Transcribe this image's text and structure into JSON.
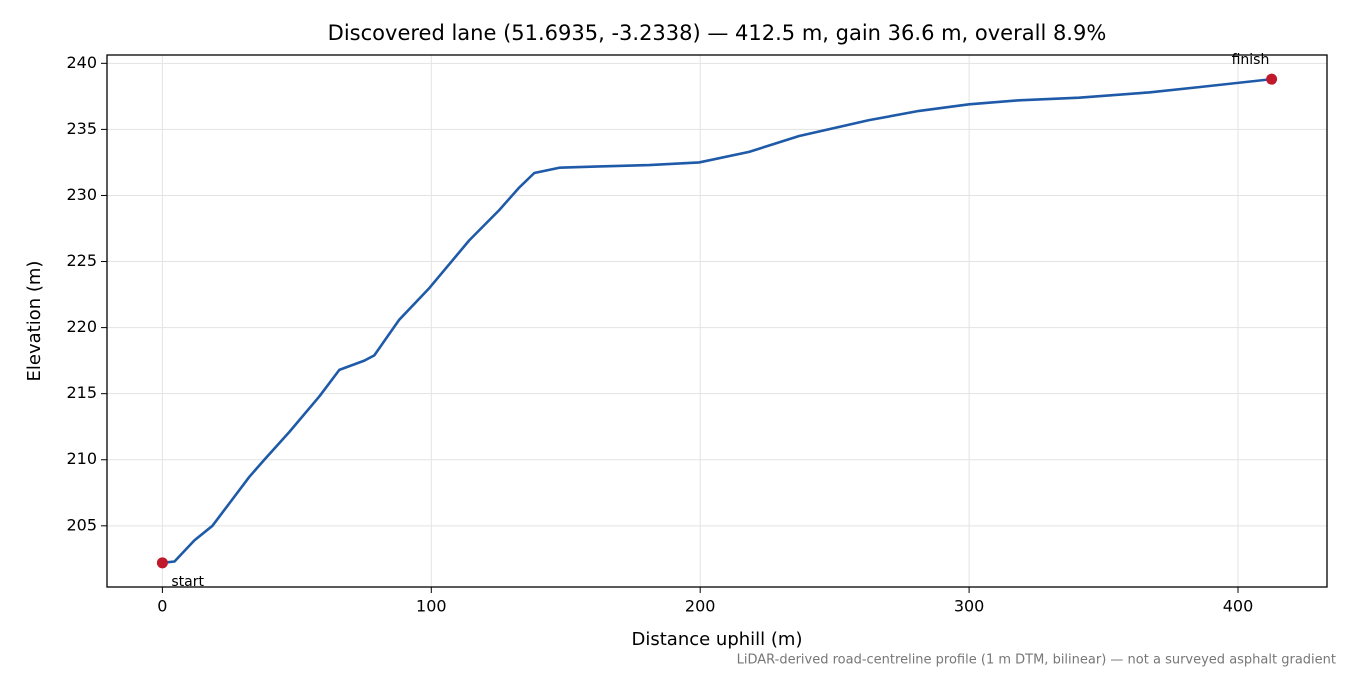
{
  "chart_data": {
    "type": "line",
    "title": "Discovered lane (51.6935, -3.2338) — 412.5 m, gain 36.6 m, overall 8.9%",
    "x_label": "Distance uphill (m)",
    "y_label": "Elevation (m)",
    "footnote": "LiDAR-derived road-centreline profile (1 m DTM, bilinear) — not a surveyed asphalt gradient",
    "x": [
      0,
      4.5,
      11.9,
      18.6,
      24.9,
      32.3,
      37.9,
      47.2,
      58.4,
      65.8,
      75.1,
      78.8,
      88.1,
      99.3,
      114.1,
      125.3,
      132.7,
      138.3,
      147.6,
      162.5,
      181.0,
      199.6,
      218.2,
      236.8,
      262.8,
      281.4,
      300.0,
      318.6,
      340.9,
      366.9,
      385.5,
      412.5
    ],
    "values": [
      202.2,
      202.3,
      203.9,
      205.0,
      206.7,
      208.7,
      210.0,
      212.1,
      214.8,
      216.8,
      217.5,
      217.9,
      220.6,
      223.0,
      226.6,
      228.9,
      230.6,
      231.7,
      232.1,
      232.2,
      232.3,
      232.5,
      233.3,
      234.5,
      235.7,
      236.4,
      236.9,
      237.2,
      237.4,
      237.8,
      238.2,
      238.8
    ],
    "color": "#1f5aa8",
    "endpoints": [
      {
        "label": "start",
        "x": 0,
        "y": 202.2
      },
      {
        "label": "finish",
        "x": 412.5,
        "y": 238.8
      }
    ],
    "endpoint_color": "#c0192c",
    "xlim": [
      -20.6,
      433.1
    ],
    "ylim": [
      200.37,
      240.63
    ],
    "xticks": [
      0,
      100,
      200,
      300,
      400
    ],
    "yticks": [
      205,
      210,
      215,
      220,
      225,
      230,
      235,
      240
    ],
    "grid": true
  }
}
